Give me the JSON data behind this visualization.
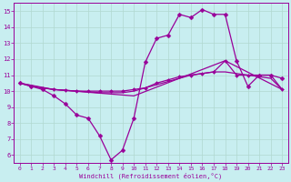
{
  "bg_color": "#c8eef0",
  "line_color": "#990099",
  "grid_color": "#b0d8d0",
  "xlabel": "Windchill (Refroidissement éolien,°C)",
  "xlim": [
    -0.5,
    23.5
  ],
  "ylim": [
    5.5,
    15.5
  ],
  "yticks": [
    6,
    7,
    8,
    9,
    10,
    11,
    12,
    13,
    14,
    15
  ],
  "xticks": [
    0,
    1,
    2,
    3,
    4,
    5,
    6,
    7,
    8,
    9,
    10,
    11,
    12,
    13,
    14,
    15,
    16,
    17,
    18,
    19,
    20,
    21,
    22,
    23
  ],
  "series": [
    {
      "x": [
        0,
        1,
        2,
        3,
        4,
        5,
        6,
        7,
        8,
        9,
        10,
        11,
        12,
        13,
        14,
        15,
        16,
        17,
        18,
        19,
        20,
        21,
        22,
        23
      ],
      "y": [
        10.5,
        10.3,
        10.1,
        9.7,
        9.2,
        8.5,
        8.3,
        7.2,
        5.7,
        6.3,
        8.3,
        11.8,
        13.3,
        13.5,
        14.8,
        14.6,
        15.1,
        14.8,
        14.8,
        11.9,
        10.3,
        11.0,
        11.0,
        10.8
      ],
      "marker": true,
      "markersize": 2.5,
      "linewidth": 0.9
    },
    {
      "x": [
        0,
        1,
        2,
        3,
        4,
        5,
        6,
        7,
        8,
        9,
        10,
        11,
        12,
        13,
        14,
        15,
        16,
        17,
        18,
        19,
        20,
        21,
        22,
        23
      ],
      "y": [
        10.5,
        10.3,
        10.2,
        10.1,
        10.05,
        10.0,
        10.0,
        10.0,
        10.0,
        10.0,
        10.1,
        10.2,
        10.5,
        10.7,
        10.9,
        11.0,
        11.1,
        11.2,
        11.9,
        11.0,
        11.0,
        11.0,
        11.0,
        10.1
      ],
      "marker": true,
      "markersize": 2.0,
      "linewidth": 0.9
    },
    {
      "x": [
        0,
        1,
        2,
        3,
        4,
        5,
        6,
        7,
        8,
        9,
        10,
        11,
        12,
        13,
        14,
        15,
        16,
        17,
        18,
        19,
        20,
        21,
        22,
        23
      ],
      "y": [
        10.5,
        10.35,
        10.2,
        10.1,
        10.05,
        10.0,
        9.95,
        9.9,
        9.9,
        9.9,
        10.0,
        10.2,
        10.4,
        10.6,
        10.8,
        11.0,
        11.1,
        11.2,
        11.2,
        11.1,
        11.0,
        10.9,
        10.8,
        10.1
      ],
      "marker": false,
      "markersize": 2.0,
      "linewidth": 0.9
    },
    {
      "x": [
        0,
        3,
        10,
        18,
        23
      ],
      "y": [
        10.5,
        10.1,
        9.7,
        11.9,
        10.1
      ],
      "marker": false,
      "markersize": 2.0,
      "linewidth": 0.9
    }
  ]
}
